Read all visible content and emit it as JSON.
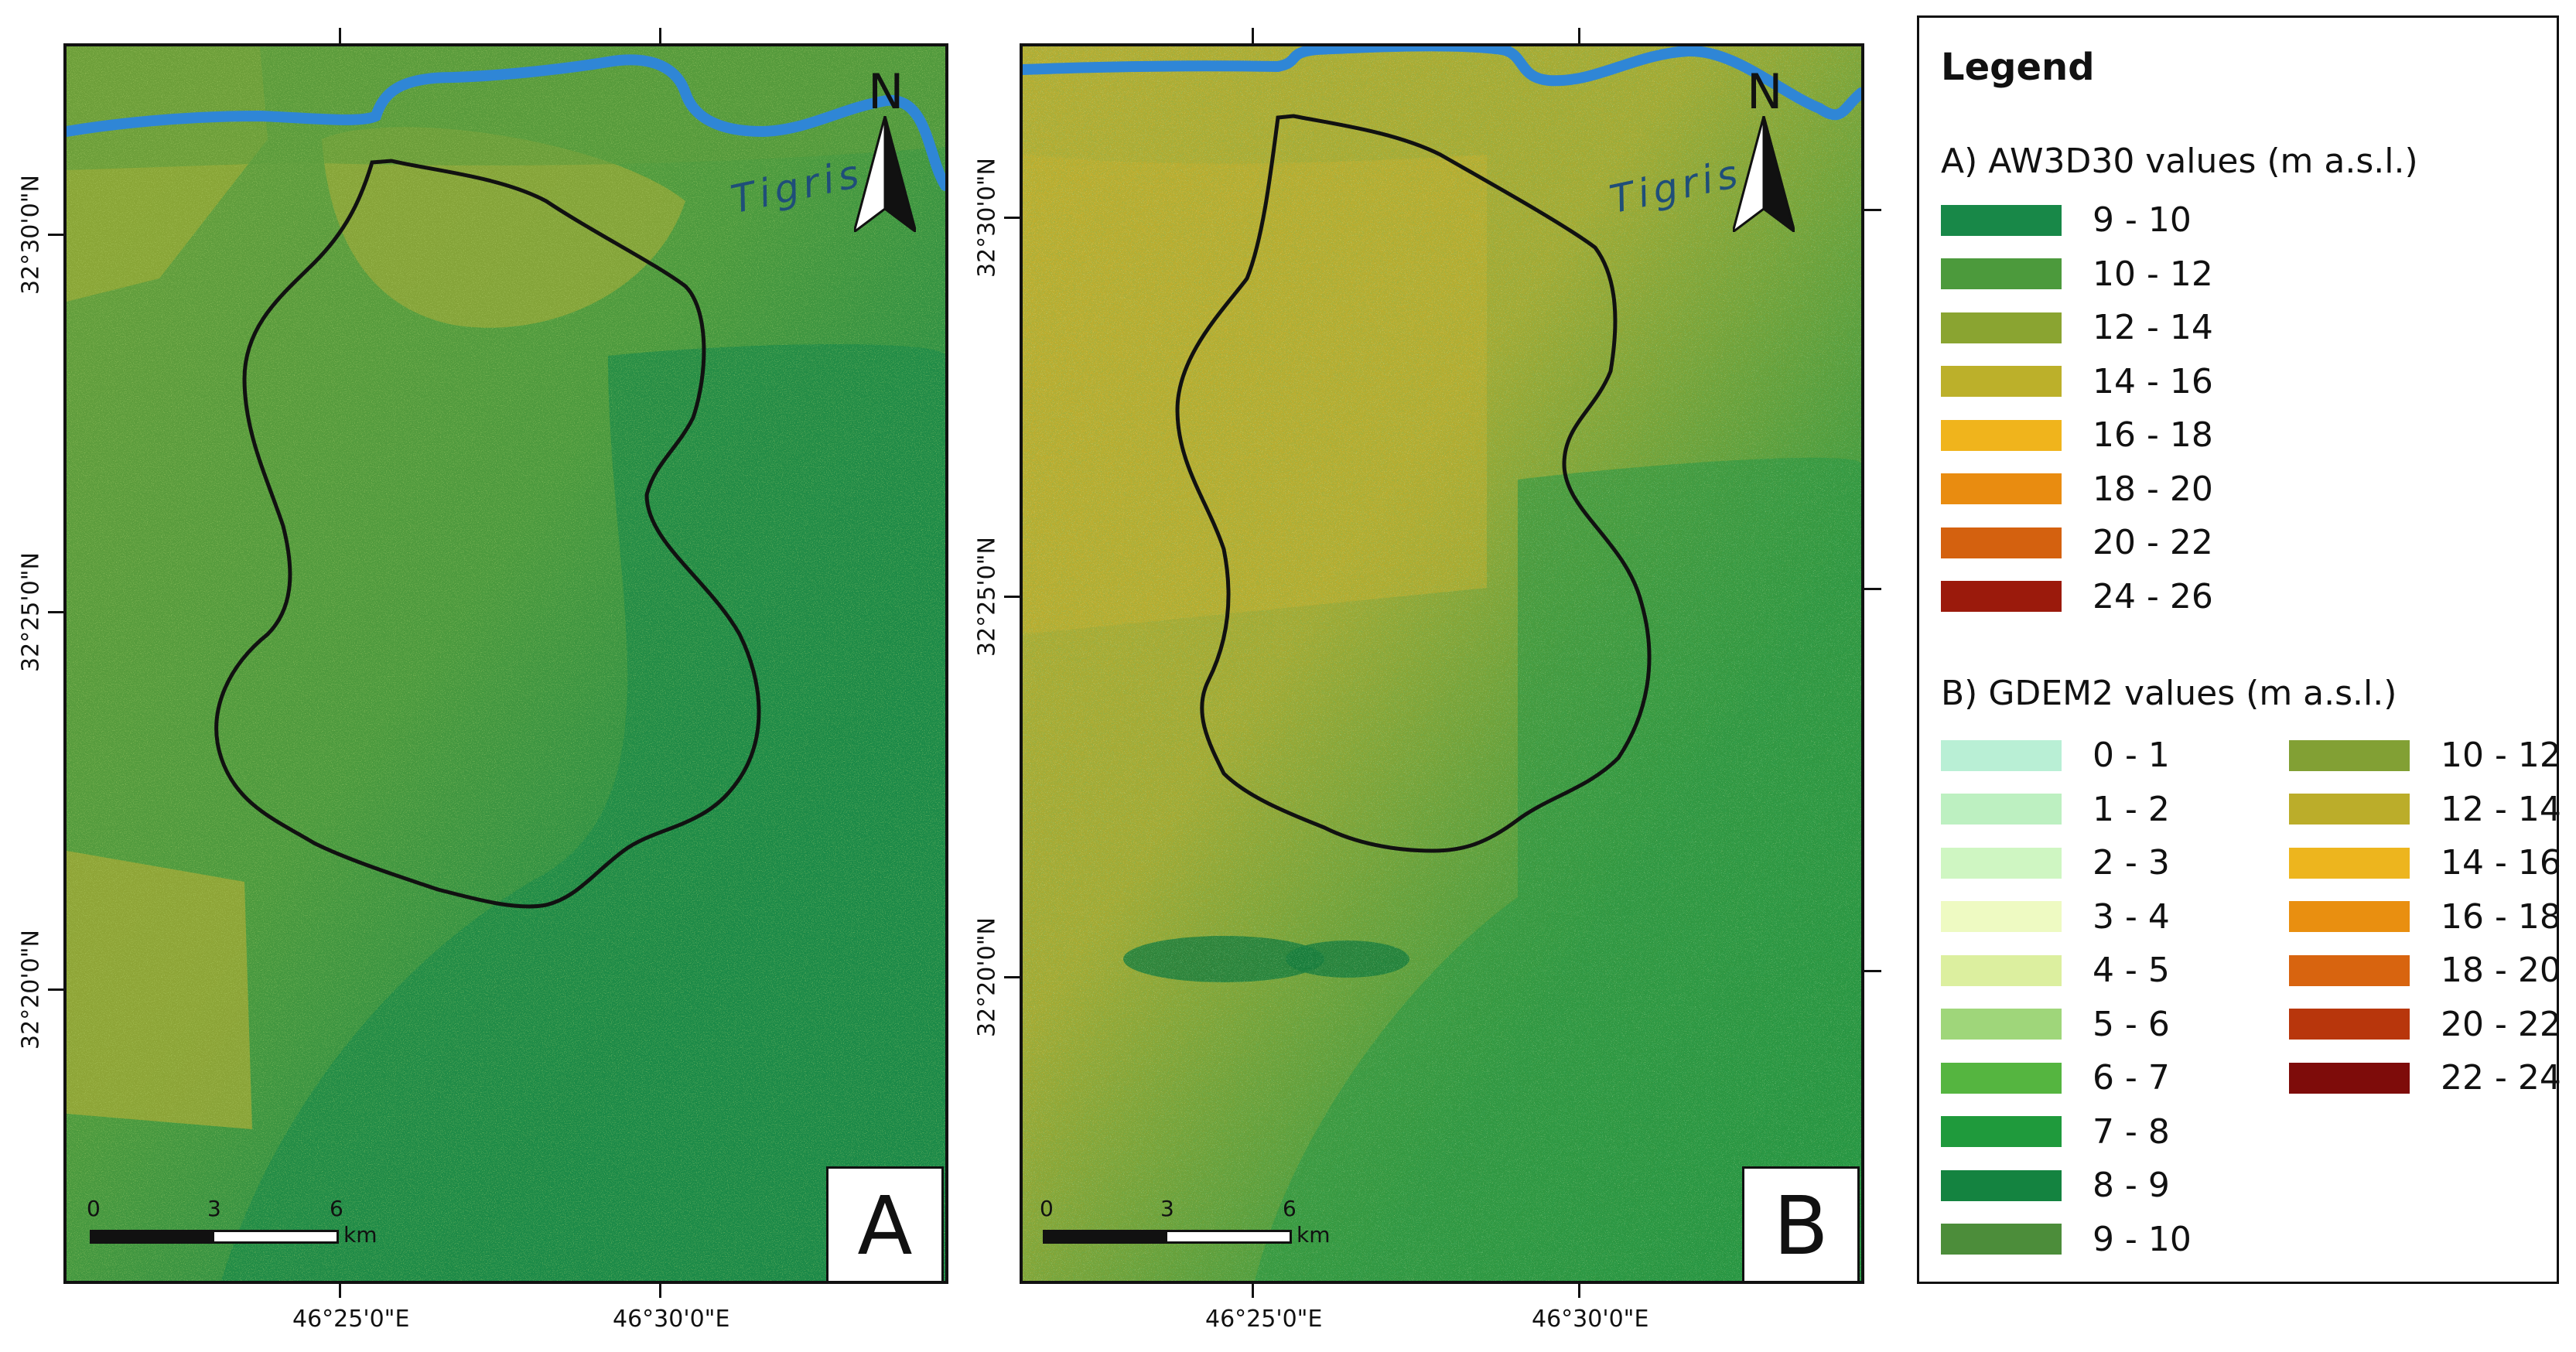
{
  "panels": [
    {
      "letter": "A",
      "scale": {
        "ticks": [
          "0",
          "3",
          "6"
        ],
        "unit": "km"
      },
      "river_label": "Tigris",
      "north_label": "N"
    },
    {
      "letter": "B",
      "scale": {
        "ticks": [
          "0",
          "3",
          "6"
        ],
        "unit": "km"
      },
      "river_label": "Tigris",
      "north_label": "N"
    }
  ],
  "axes": {
    "x_ticks": [
      "46°25'0\"E",
      "46°30'0\"E"
    ],
    "y_ticks": [
      "32°30'0\"N",
      "32°25'0\"N",
      "32°20'0\"N"
    ]
  },
  "legend": {
    "title": "Legend",
    "sections": [
      {
        "title": "A) AW3D30 values (m a.s.l.)",
        "items": [
          {
            "label": "9 - 10",
            "color": "#188848"
          },
          {
            "label": "10 - 12",
            "color": "#4c9a3c"
          },
          {
            "label": "12 - 14",
            "color": "#8aa431"
          },
          {
            "label": "14 - 16",
            "color": "#bcb02a"
          },
          {
            "label": "16 - 18",
            "color": "#f0b41c"
          },
          {
            "label": "18 - 20",
            "color": "#e98c10"
          },
          {
            "label": "20 - 22",
            "color": "#d4610f"
          },
          {
            "label": "24 - 26",
            "color": "#9b1a0c"
          }
        ]
      },
      {
        "title": "B) GDEM2 values (m a.s.l.)",
        "items": [
          {
            "label": "0 - 1",
            "color": "#b9efd5"
          },
          {
            "label": "1 - 2",
            "color": "#bdf0c1"
          },
          {
            "label": "2 - 3",
            "color": "#cff6c2"
          },
          {
            "label": "3 - 4",
            "color": "#eefac2"
          },
          {
            "label": "4 - 5",
            "color": "#dcef9f"
          },
          {
            "label": "5 - 6",
            "color": "#9fd67a"
          },
          {
            "label": "6 - 7",
            "color": "#55b540"
          },
          {
            "label": "7 - 8",
            "color": "#1f9a3c"
          },
          {
            "label": "8 - 9",
            "color": "#148340"
          },
          {
            "label": "9 - 10",
            "color": "#4c8d3a"
          },
          {
            "label": "10 - 12",
            "color": "#82a034"
          },
          {
            "label": "12 - 14",
            "color": "#bbad2a"
          },
          {
            "label": "14 - 16",
            "color": "#edb51e"
          },
          {
            "label": "16 - 18",
            "color": "#e98f10"
          },
          {
            "label": "18 - 20",
            "color": "#d8640f"
          },
          {
            "label": "20 - 22",
            "color": "#b8360c"
          },
          {
            "label": "22 - 24",
            "color": "#7e0c0a"
          }
        ]
      }
    ]
  },
  "colors": {
    "river": "#2f86d6",
    "river_label": "#1f4e79",
    "map_dark_green": "#1b8a47",
    "map_mid_green": "#4a993f",
    "map_olive": "#8aa33a",
    "map_yellow_olive": "#b8ad30"
  },
  "icons": {
    "north_arrow": "north-arrow-icon"
  }
}
